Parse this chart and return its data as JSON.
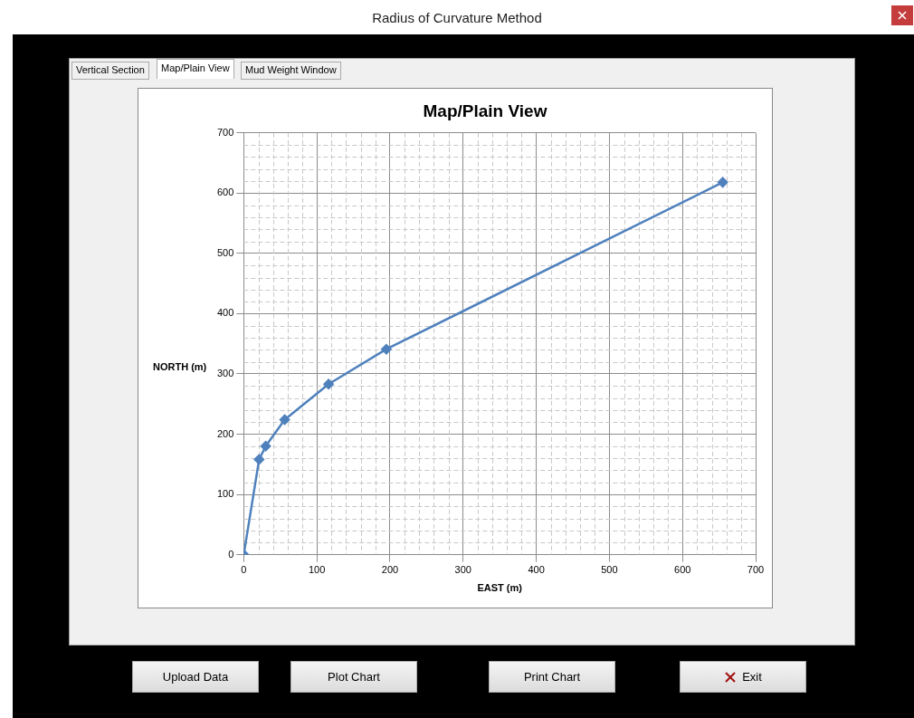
{
  "chart_data": {
    "type": "line",
    "title": "Map/Plain View",
    "xlabel": "EAST (m)",
    "ylabel": "NORTH (m)",
    "x": [
      0,
      21,
      30,
      56,
      116,
      195,
      655
    ],
    "series": [
      {
        "color": "#4f81bd",
        "values": [
          0,
          158,
          180,
          224,
          283,
          341,
          618
        ]
      }
    ],
    "xlim": [
      0,
      700
    ],
    "xticks": [
      0,
      100,
      200,
      300,
      400,
      500,
      600,
      700
    ],
    "ylim": [
      0,
      700
    ],
    "yticks": [
      0,
      100,
      200,
      300,
      400,
      500,
      600,
      700
    ],
    "grid": true,
    "marker": "diamond",
    "line_style": "solid",
    "legend": false,
    "annotations": [
      "Radius of Curvature Method",
      "Vertical Section",
      "Map/Plain View",
      "Mud Weight Window",
      "Upload Data",
      "Plot Chart",
      "Print Chart",
      "Exit"
    ]
  }
}
